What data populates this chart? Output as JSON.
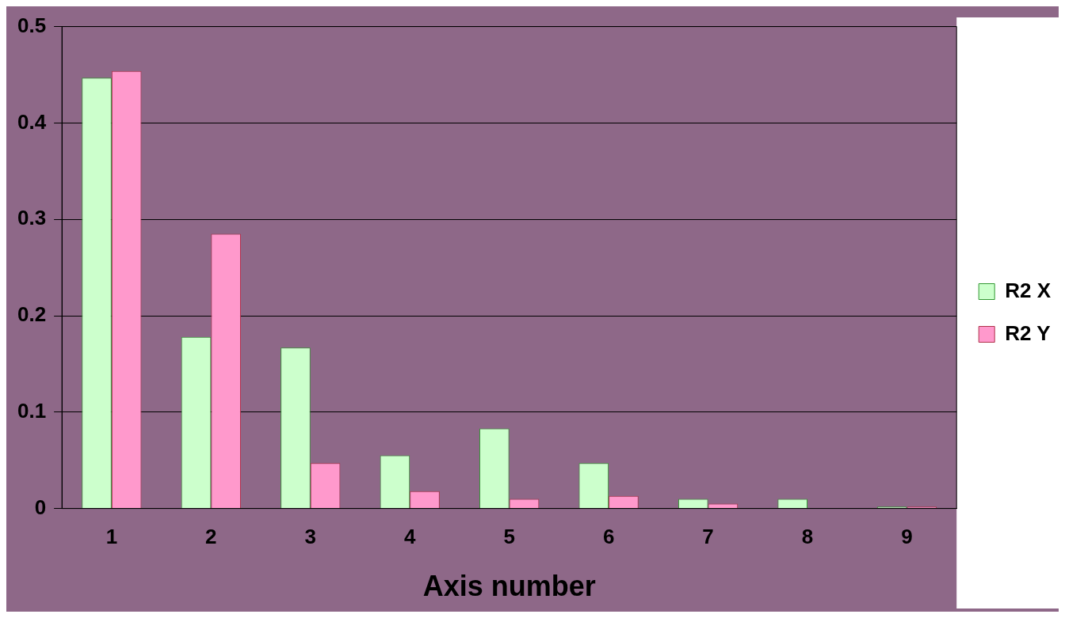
{
  "chart_data": {
    "type": "bar",
    "xlabel": "Axis number",
    "categories": [
      "1",
      "2",
      "3",
      "4",
      "5",
      "6",
      "7",
      "8",
      "9"
    ],
    "series": [
      {
        "name": "R2 X",
        "color": "#ccffcc",
        "values": [
          0.447,
          0.178,
          0.167,
          0.055,
          0.083,
          0.047,
          0.01,
          0.01,
          0.002
        ]
      },
      {
        "name": "R2 Y",
        "color": "#ff99cc",
        "values": [
          0.454,
          0.285,
          0.047,
          0.018,
          0.01,
          0.013,
          0.005,
          0,
          0.002
        ]
      }
    ],
    "ylim": [
      0,
      0.5
    ],
    "yticks": [
      0,
      0.1,
      0.2,
      0.3,
      0.4,
      0.5
    ],
    "grid": "y",
    "legend": "right"
  }
}
